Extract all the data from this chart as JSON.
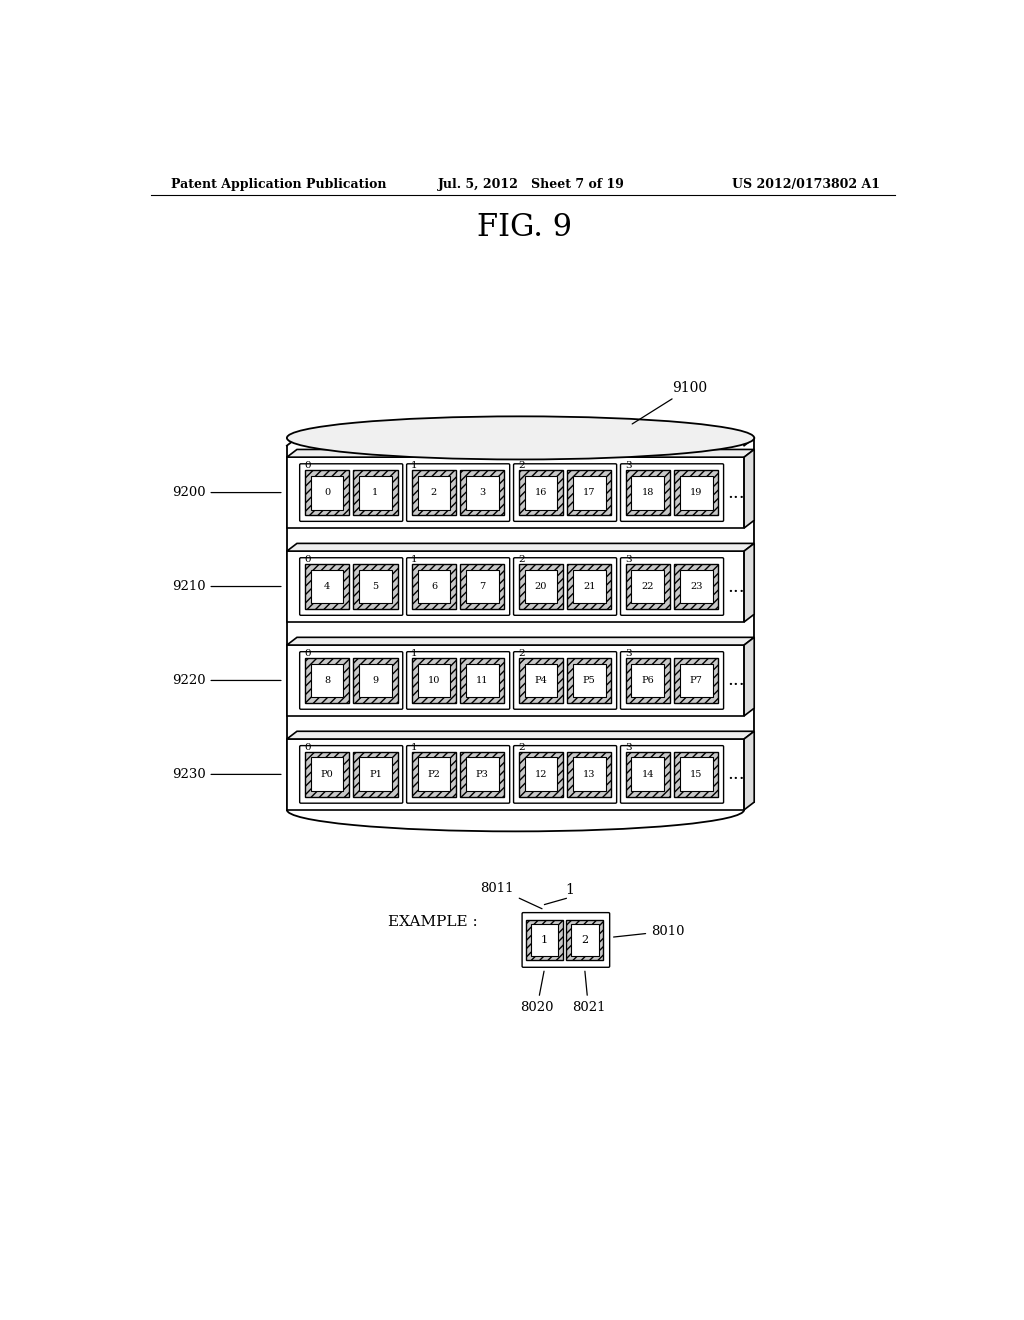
{
  "title": "FIG. 9",
  "header_left": "Patent Application Publication",
  "header_mid": "Jul. 5, 2012   Sheet 7 of 19",
  "header_right": "US 2012/0173802 A1",
  "cylinder_label": "9100",
  "rows": [
    {
      "label": "9200",
      "groups": [
        {
          "index": "0",
          "cells": [
            "0",
            "1"
          ]
        },
        {
          "index": "1",
          "cells": [
            "2",
            "3"
          ]
        },
        {
          "index": "2",
          "cells": [
            "16",
            "17"
          ]
        },
        {
          "index": "3",
          "cells": [
            "18",
            "19"
          ]
        }
      ]
    },
    {
      "label": "9210",
      "groups": [
        {
          "index": "0",
          "cells": [
            "4",
            "5"
          ]
        },
        {
          "index": "1",
          "cells": [
            "6",
            "7"
          ]
        },
        {
          "index": "2",
          "cells": [
            "20",
            "21"
          ]
        },
        {
          "index": "3",
          "cells": [
            "22",
            "23"
          ]
        }
      ]
    },
    {
      "label": "9220",
      "groups": [
        {
          "index": "0",
          "cells": [
            "8",
            "9"
          ]
        },
        {
          "index": "1",
          "cells": [
            "10",
            "11"
          ]
        },
        {
          "index": "2",
          "cells": [
            "P4",
            "P5"
          ]
        },
        {
          "index": "3",
          "cells": [
            "P6",
            "P7"
          ]
        }
      ]
    },
    {
      "label": "9230",
      "groups": [
        {
          "index": "0",
          "cells": [
            "P0",
            "P1"
          ]
        },
        {
          "index": "1",
          "cells": [
            "P2",
            "P3"
          ]
        },
        {
          "index": "2",
          "cells": [
            "12",
            "13"
          ]
        },
        {
          "index": "3",
          "cells": [
            "14",
            "15"
          ]
        }
      ]
    }
  ],
  "example_label": "EXAMPLE :",
  "example_top_label": "8011",
  "example_top_num": "1",
  "example_right_label": "8010",
  "example_bottom_labels": [
    "8020",
    "8021"
  ],
  "example_cells": [
    "1",
    "2"
  ]
}
